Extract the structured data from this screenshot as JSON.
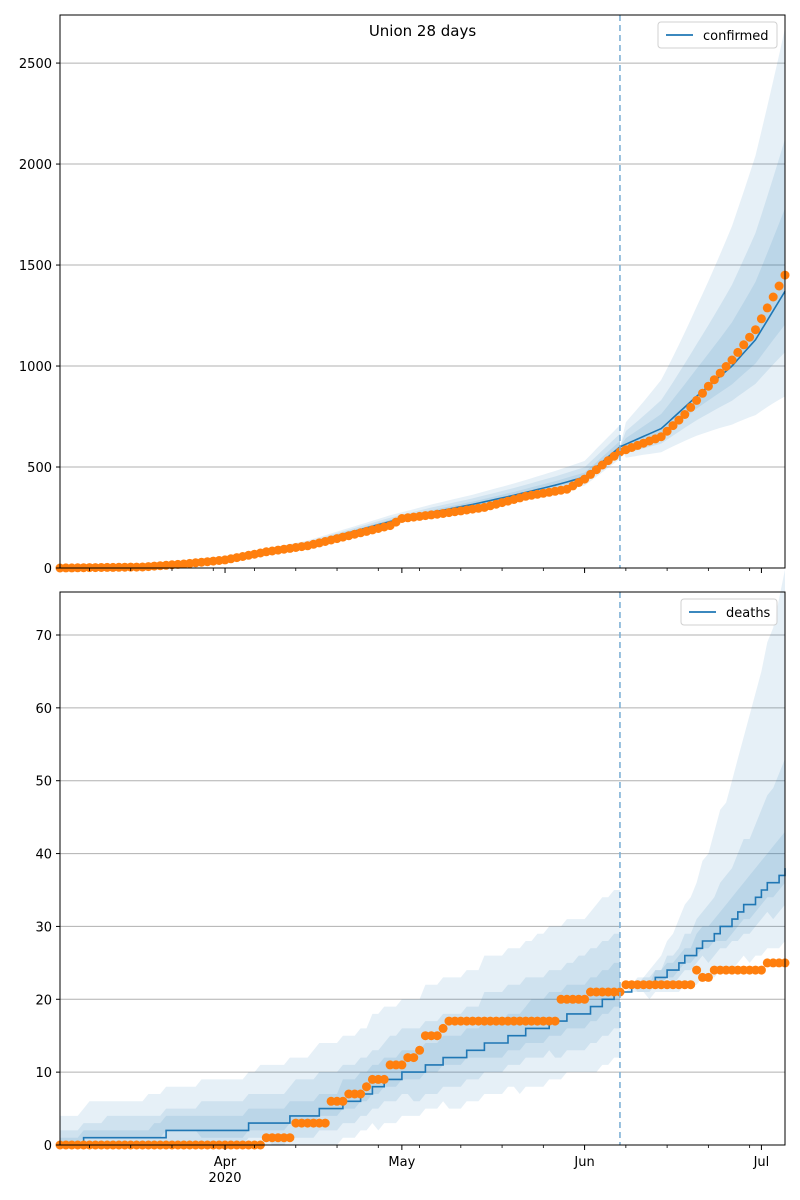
{
  "chart_data": [
    {
      "type": "line",
      "title": "Union 28 days",
      "legend": {
        "entries": [
          "confirmed"
        ],
        "placement": "top-right"
      },
      "xlabel": "",
      "ylabel": "",
      "x_start": "2020-03-04",
      "x_end": "2020-07-05",
      "forecast_start": "2020-06-07",
      "x_ticks": [
        {
          "date": "2020-04-01",
          "label": "Apr",
          "sublabel": "2020"
        },
        {
          "date": "2020-05-01",
          "label": "May",
          "sublabel": ""
        },
        {
          "date": "2020-06-01",
          "label": "Jun",
          "sublabel": ""
        },
        {
          "date": "2020-07-01",
          "label": "Jul",
          "sublabel": ""
        }
      ],
      "ylim": [
        0,
        2738
      ],
      "y_ticks": [
        0,
        500,
        1000,
        1500,
        2000,
        2500
      ],
      "grid": "y",
      "model_key_days": [
        0,
        14,
        21,
        28,
        35,
        42,
        49,
        56,
        63,
        70,
        77,
        84,
        89,
        95,
        102,
        108,
        114,
        118,
        123
      ],
      "model_values": [
        0,
        5,
        22,
        48,
        85,
        120,
        175,
        230,
        275,
        315,
        360,
        410,
        450,
        600,
        690,
        850,
        1000,
        1130,
        1370
      ],
      "bands": [
        {
          "name": "outer",
          "lower_mult": [
            1,
            0.9,
            0.82,
            0.62
          ],
          "upper_mult": [
            1,
            1.15,
            1.35,
            1.95
          ]
        },
        {
          "name": "mid",
          "lower_mult": [
            1,
            0.93,
            0.88,
            0.78
          ],
          "upper_mult": [
            1,
            1.09,
            1.2,
            1.55
          ]
        },
        {
          "name": "inner",
          "lower_mult": [
            1,
            0.97,
            0.94,
            0.88
          ],
          "upper_mult": [
            1,
            1.04,
            1.1,
            1.3
          ]
        }
      ],
      "observed_key_days": [
        0,
        14,
        21,
        28,
        35,
        42,
        49,
        56,
        58,
        65,
        72,
        79,
        86,
        89,
        92,
        95,
        102,
        106,
        110,
        114,
        118,
        123
      ],
      "observed_values": [
        0,
        5,
        20,
        40,
        80,
        110,
        160,
        210,
        245,
        270,
        300,
        355,
        390,
        440,
        510,
        575,
        650,
        760,
        900,
        1030,
        1180,
        1450
      ],
      "series_names": [
        "confirmed",
        "observed"
      ]
    },
    {
      "type": "line",
      "title": "",
      "legend": {
        "entries": [
          "deaths"
        ],
        "placement": "top-right"
      },
      "xlabel": "",
      "ylabel": "",
      "x_start": "2020-03-04",
      "x_end": "2020-07-05",
      "forecast_start": "2020-06-07",
      "x_ticks": [
        {
          "date": "2020-04-01",
          "label": "Apr",
          "sublabel": "2020"
        },
        {
          "date": "2020-05-01",
          "label": "May",
          "sublabel": ""
        },
        {
          "date": "2020-06-01",
          "label": "Jun",
          "sublabel": ""
        },
        {
          "date": "2020-07-01",
          "label": "Jul",
          "sublabel": ""
        }
      ],
      "ylim": [
        0,
        75.9
      ],
      "y_ticks": [
        0,
        10,
        20,
        30,
        40,
        50,
        60,
        70
      ],
      "grid": "y",
      "model_key_days": [
        0,
        8,
        28,
        36,
        42,
        49,
        56,
        63,
        70,
        77,
        84,
        91,
        95,
        102,
        108,
        114,
        118,
        123
      ],
      "model_values": [
        0,
        1,
        2,
        3,
        4,
        6,
        9,
        11,
        13,
        15,
        17,
        19,
        21,
        23,
        27,
        31,
        34,
        38
      ],
      "deaths_band_offsets": {
        "outer": [
          [
            -1,
            4
          ],
          [
            -4,
            13
          ]
        ],
        "mid": [
          [
            -1,
            2
          ],
          [
            -2,
            8
          ]
        ],
        "inner": [
          [
            0,
            1
          ],
          [
            -1,
            4
          ]
        ]
      },
      "observed_runs": [
        {
          "from_day": 0,
          "to_day": 34,
          "value": 0
        },
        {
          "from_day": 35,
          "to_day": 39,
          "value": 1
        },
        {
          "from_day": 40,
          "to_day": 45,
          "value": 3
        },
        {
          "from_day": 46,
          "to_day": 48,
          "value": 6
        },
        {
          "from_day": 49,
          "to_day": 51,
          "value": 7
        },
        {
          "from_day": 52,
          "to_day": 52,
          "value": 8
        },
        {
          "from_day": 53,
          "to_day": 55,
          "value": 9
        },
        {
          "from_day": 56,
          "to_day": 58,
          "value": 11
        },
        {
          "from_day": 59,
          "to_day": 60,
          "value": 12
        },
        {
          "from_day": 61,
          "to_day": 61,
          "value": 13
        },
        {
          "from_day": 62,
          "to_day": 64,
          "value": 15
        },
        {
          "from_day": 65,
          "to_day": 65,
          "value": 16
        },
        {
          "from_day": 66,
          "to_day": 84,
          "value": 17
        },
        {
          "from_day": 85,
          "to_day": 89,
          "value": 20
        },
        {
          "from_day": 90,
          "to_day": 95,
          "value": 21
        },
        {
          "from_day": 96,
          "to_day": 107,
          "value": 22
        },
        {
          "from_day": 108,
          "to_day": 108,
          "value": 24
        },
        {
          "from_day": 109,
          "to_day": 110,
          "value": 23
        },
        {
          "from_day": 111,
          "to_day": 119,
          "value": 24
        },
        {
          "from_day": 120,
          "to_day": 123,
          "value": 25
        }
      ],
      "series_names": [
        "deaths",
        "observed"
      ]
    }
  ],
  "colors": {
    "model_line": "#1f77b4",
    "observed": "#ff7f0e",
    "band": "#1f77b4",
    "forecast_line": "#7fb1d6",
    "grid": "#b0b0b0"
  }
}
